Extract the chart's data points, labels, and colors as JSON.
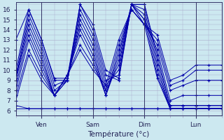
{
  "title": "Température (°c)",
  "background_color": "#cce8f0",
  "grid_color": "#aaaacc",
  "line_color": "#0000aa",
  "marker": "+",
  "x_ticks": [
    12,
    36,
    60,
    84
  ],
  "x_tick_labels": [
    "Ven",
    "Sam",
    "Dim",
    "Lun"
  ],
  "xlim": [
    0,
    96
  ],
  "ylim": [
    5.5,
    16.7
  ],
  "ylabel_vals": [
    6,
    7,
    8,
    9,
    10,
    11,
    12,
    13,
    14,
    15,
    16
  ],
  "lines": [
    {
      "x": [
        0,
        6,
        12,
        18,
        24,
        30,
        36,
        42,
        48,
        54,
        60,
        66,
        72,
        78,
        84,
        90,
        96
      ],
      "y": [
        13.0,
        16.0,
        13.0,
        9.2,
        9.2,
        16.5,
        14.5,
        10.0,
        9.2,
        16.5,
        14.5,
        9.2,
        6.2,
        6.2,
        6.2,
        6.2,
        6.2
      ]
    },
    {
      "x": [
        0,
        6,
        12,
        18,
        24,
        30,
        36,
        42,
        48,
        54,
        60,
        66,
        72,
        78,
        84,
        90,
        96
      ],
      "y": [
        10.0,
        16.0,
        13.0,
        9.0,
        9.0,
        16.5,
        14.0,
        9.5,
        9.0,
        16.5,
        15.0,
        9.5,
        6.2,
        6.2,
        6.2,
        6.2,
        6.2
      ]
    },
    {
      "x": [
        0,
        6,
        12,
        18,
        24,
        30,
        36,
        42,
        48,
        54,
        60,
        66,
        72,
        78,
        84,
        90,
        96
      ],
      "y": [
        9.5,
        15.5,
        12.5,
        8.5,
        9.0,
        16.0,
        13.5,
        9.0,
        9.5,
        16.5,
        15.5,
        10.0,
        6.2,
        6.2,
        6.2,
        6.2,
        6.2
      ]
    },
    {
      "x": [
        0,
        6,
        12,
        18,
        24,
        30,
        36,
        42,
        48,
        54,
        60,
        66,
        72,
        78,
        84,
        90,
        96
      ],
      "y": [
        9.2,
        15.0,
        12.0,
        8.0,
        9.0,
        15.5,
        13.0,
        8.5,
        10.0,
        16.5,
        16.0,
        10.5,
        6.2,
        6.2,
        6.2,
        6.2,
        6.2
      ]
    },
    {
      "x": [
        0,
        6,
        12,
        18,
        24,
        30,
        36,
        42,
        48,
        54,
        60,
        66,
        72,
        78,
        84,
        90,
        96
      ],
      "y": [
        9.2,
        14.5,
        11.5,
        7.5,
        9.0,
        15.0,
        12.5,
        8.0,
        10.5,
        16.5,
        16.5,
        11.0,
        6.5,
        6.5,
        6.5,
        6.5,
        6.5
      ]
    },
    {
      "x": [
        0,
        6,
        12,
        18,
        24,
        30,
        36,
        42,
        48,
        54,
        60,
        66,
        72,
        78,
        84,
        90,
        96
      ],
      "y": [
        9.0,
        14.0,
        11.0,
        7.5,
        9.0,
        14.5,
        12.0,
        7.5,
        11.0,
        16.5,
        16.5,
        11.5,
        6.5,
        6.5,
        6.5,
        6.5,
        6.5
      ]
    },
    {
      "x": [
        0,
        6,
        12,
        18,
        24,
        30,
        36,
        42,
        48,
        54,
        60,
        66,
        72,
        78,
        84,
        90,
        96
      ],
      "y": [
        8.5,
        13.5,
        10.5,
        7.5,
        9.5,
        14.0,
        11.5,
        7.5,
        11.5,
        16.5,
        15.0,
        12.0,
        7.0,
        7.5,
        7.5,
        7.5,
        7.5
      ]
    },
    {
      "x": [
        0,
        6,
        12,
        18,
        24,
        30,
        36,
        42,
        48,
        54,
        60,
        66,
        72,
        78,
        84,
        90,
        96
      ],
      "y": [
        8.0,
        13.0,
        10.0,
        7.5,
        9.5,
        13.5,
        11.0,
        7.5,
        12.0,
        16.0,
        14.5,
        12.5,
        8.0,
        8.5,
        9.0,
        9.0,
        9.0
      ]
    },
    {
      "x": [
        0,
        6,
        12,
        18,
        24,
        30,
        36,
        42,
        48,
        54,
        60,
        66,
        72,
        78,
        84,
        90,
        96
      ],
      "y": [
        7.5,
        12.0,
        9.5,
        7.5,
        9.5,
        12.5,
        10.5,
        8.0,
        12.5,
        16.0,
        14.5,
        13.0,
        8.5,
        9.0,
        10.0,
        10.0,
        10.0
      ]
    },
    {
      "x": [
        0,
        6,
        12,
        18,
        24,
        30,
        36,
        42,
        48,
        54,
        60,
        66,
        72,
        78,
        84,
        90,
        96
      ],
      "y": [
        7.0,
        11.5,
        9.0,
        7.5,
        9.5,
        12.0,
        10.0,
        8.5,
        13.0,
        16.0,
        14.5,
        13.5,
        9.0,
        9.5,
        10.5,
        10.5,
        10.5
      ]
    },
    {
      "x": [
        0,
        6,
        12,
        18,
        24,
        30,
        36,
        42,
        48,
        54,
        60,
        66,
        72,
        78,
        84,
        90,
        96
      ],
      "y": [
        6.5,
        6.2,
        6.2,
        6.2,
        6.2,
        6.2,
        6.2,
        6.2,
        6.2,
        6.2,
        6.2,
        6.2,
        6.2,
        6.2,
        6.2,
        6.2,
        6.2
      ]
    },
    {
      "x": [
        0,
        6,
        12,
        18,
        24,
        30,
        36,
        42,
        48,
        54,
        60,
        66,
        72,
        78,
        84,
        90,
        96
      ],
      "y": [
        6.2,
        6.2,
        6.2,
        6.2,
        6.2,
        6.2,
        6.2,
        6.2,
        6.2,
        6.2,
        6.2,
        6.2,
        6.2,
        6.2,
        6.2,
        6.2,
        6.2
      ]
    }
  ]
}
